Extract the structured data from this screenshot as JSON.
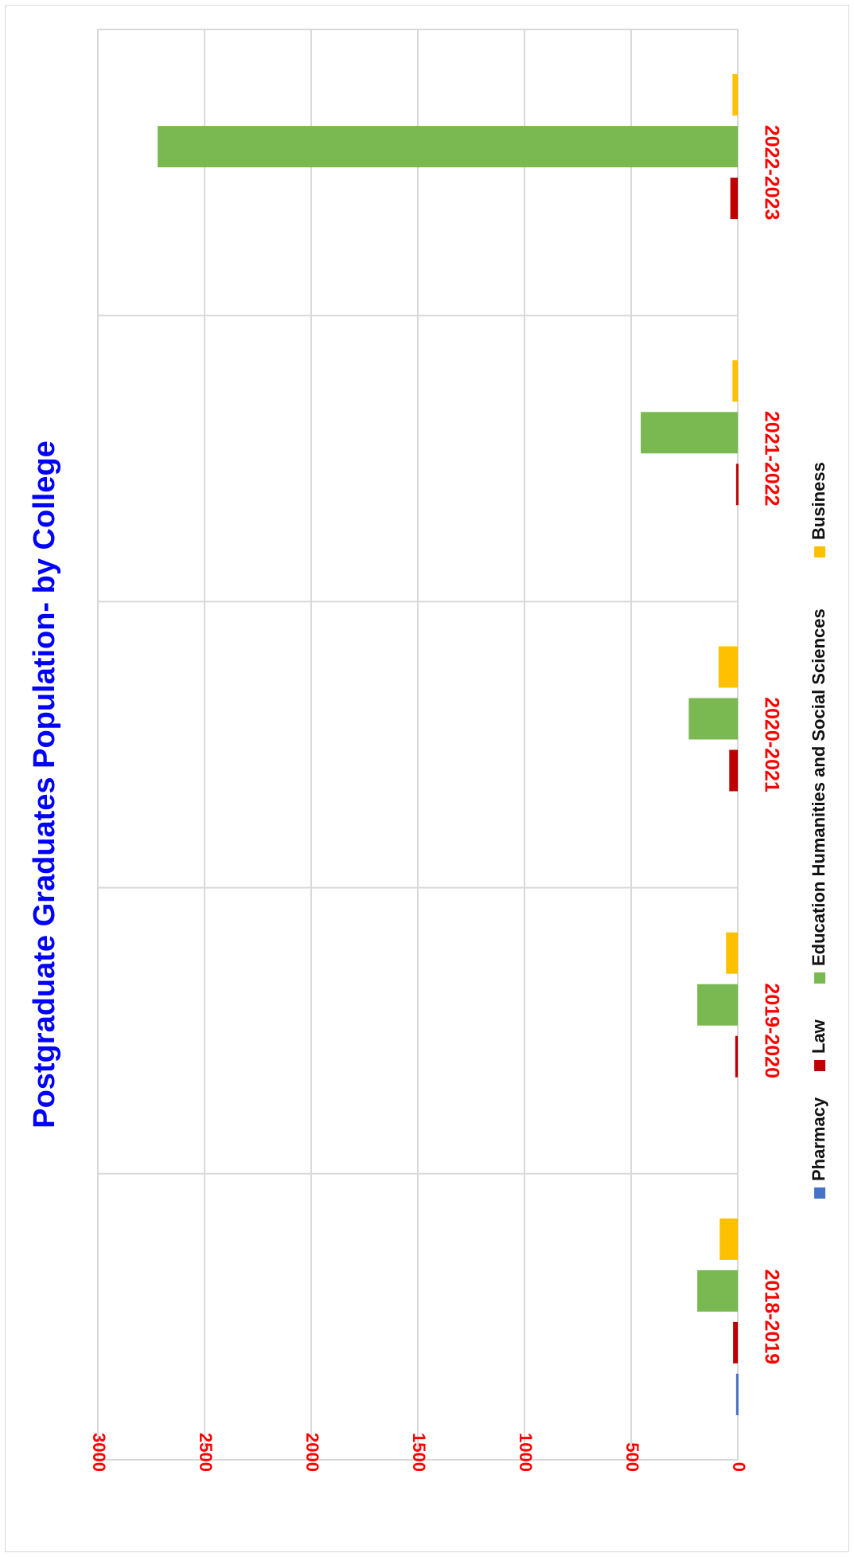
{
  "chart_data": {
    "type": "bar",
    "orientation": "rotated-90-clockwise",
    "title": "Postgraduate Graduates Population- by College",
    "categories": [
      "2018-2019",
      "2019-2020",
      "2020-2021",
      "2021-2022",
      "2022-2023"
    ],
    "series": [
      {
        "name": "Pharmacy",
        "color": "#4472c4",
        "values": [
          8,
          0,
          0,
          0,
          0
        ]
      },
      {
        "name": "Law",
        "color": "#c00000",
        "values": [
          22,
          12,
          40,
          8,
          35
        ]
      },
      {
        "name": "Education Humanities and Social Sciences",
        "color": "#7ab851",
        "values": [
          190,
          190,
          230,
          455,
          2720
        ]
      },
      {
        "name": "Business",
        "color": "#ffc000",
        "values": [
          85,
          55,
          90,
          25,
          25
        ]
      }
    ],
    "ylim": [
      0,
      3000
    ],
    "y_ticks": [
      0,
      500,
      1000,
      1500,
      2000,
      2500,
      3000
    ],
    "grid": true,
    "legend_position": "bottom",
    "colors": {
      "title": "#0000ff",
      "tick_labels": "#ff0000",
      "category_labels": "#ff0000",
      "gridlines": "#d9d9d9"
    }
  }
}
